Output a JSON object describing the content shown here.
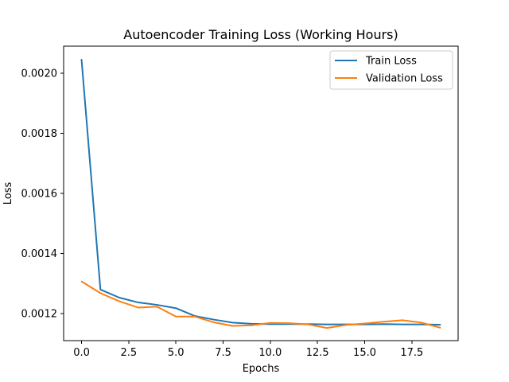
{
  "chart_data": {
    "type": "line",
    "title": "Autoencoder Training Loss (Working Hours)",
    "xlabel": "Epochs",
    "ylabel": "Loss",
    "xlim": [
      -0.95,
      19.95
    ],
    "ylim": [
      0.00111,
      0.00209
    ],
    "x": [
      0,
      1,
      2,
      3,
      4,
      5,
      6,
      7,
      8,
      9,
      10,
      11,
      12,
      13,
      14,
      15,
      16,
      17,
      18,
      19
    ],
    "x_ticks": [
      0,
      2.5,
      5,
      7.5,
      10,
      12.5,
      15,
      17.5
    ],
    "x_tick_labels": [
      "0.0",
      "2.5",
      "5.0",
      "7.5",
      "10.0",
      "12.5",
      "15.0",
      "17.5"
    ],
    "y_ticks": [
      0.0012,
      0.0014,
      0.0016,
      0.0018,
      0.002
    ],
    "y_tick_labels": [
      "0.0012",
      "0.0014",
      "0.0016",
      "0.0018",
      "0.0020"
    ],
    "grid": false,
    "legend_position": "top-right",
    "series": [
      {
        "name": "Train Loss",
        "color": "#1f77b4",
        "values": [
          0.002045,
          0.00128,
          0.001253,
          0.001237,
          0.001229,
          0.001218,
          0.001192,
          0.00118,
          0.00117,
          0.001166,
          0.001165,
          0.001165,
          0.001165,
          0.001164,
          0.001164,
          0.001164,
          0.001165,
          0.001164,
          0.001164,
          0.001163
        ]
      },
      {
        "name": "Validation Loss",
        "color": "#ff7f0e",
        "values": [
          0.001307,
          0.001268,
          0.001241,
          0.00122,
          0.001223,
          0.00119,
          0.00119,
          0.001171,
          0.001159,
          0.001161,
          0.001169,
          0.001168,
          0.001164,
          0.001152,
          0.001162,
          0.001167,
          0.001173,
          0.001178,
          0.00117,
          0.001153
        ]
      }
    ]
  }
}
